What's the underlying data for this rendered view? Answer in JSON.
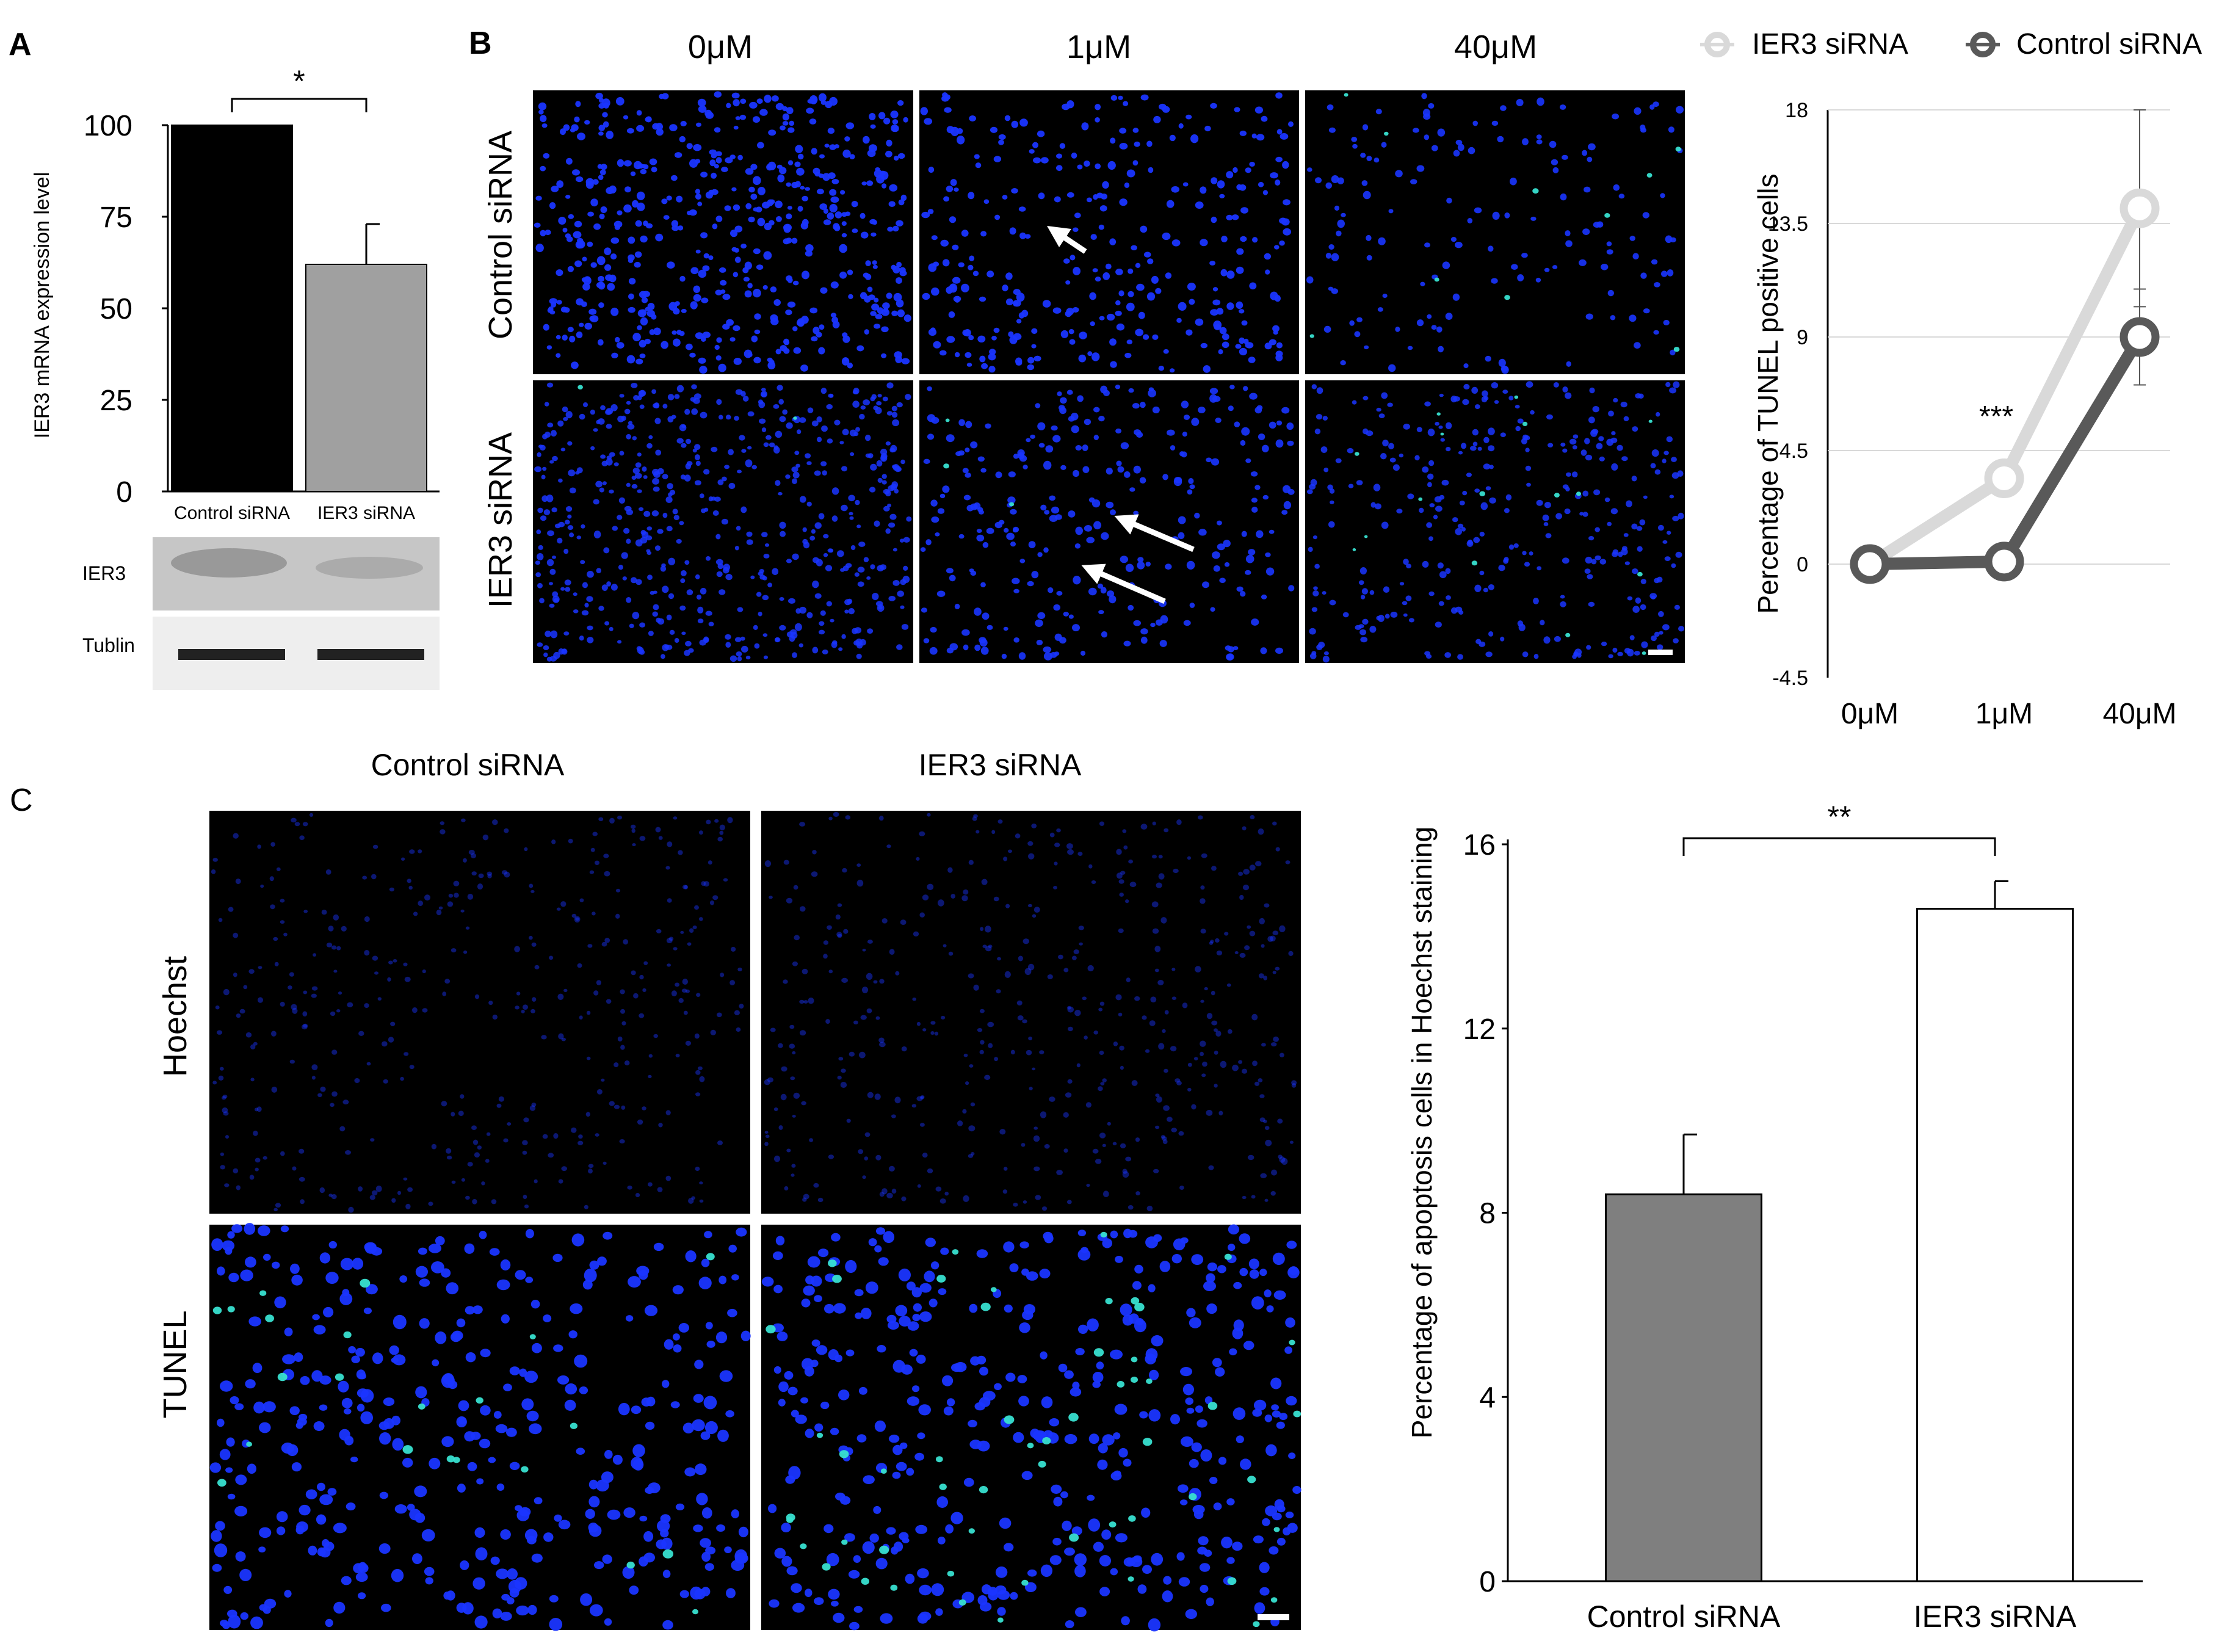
{
  "panels": {
    "a": {
      "letter": "A"
    },
    "b": {
      "letter": "B"
    },
    "c": {
      "letter": "C"
    }
  },
  "chart_data": [
    {
      "id": "panel-a-bar",
      "type": "bar",
      "categories": [
        "Control siRNA",
        "IER3 siRNA"
      ],
      "values": [
        100,
        62
      ],
      "errors": [
        0,
        11
      ],
      "bar_colors": [
        "#000000",
        "#a0a0a0"
      ],
      "ylabel": "IER3 mRNA expression level",
      "ylim": [
        0,
        100
      ],
      "yticks": [
        "100",
        "75",
        "50",
        "25",
        "0"
      ],
      "significance": "*",
      "grid": false
    },
    {
      "id": "panel-b-line",
      "type": "line",
      "x": [
        "0μM",
        "1μM",
        "40μM"
      ],
      "ylabel": "Percentage of TUNEL positive cells",
      "ylim": [
        -4.5,
        18
      ],
      "yticks": [
        "18",
        "13.5",
        "9",
        "4.5",
        "0",
        "-4.5"
      ],
      "series": [
        {
          "name": "IER3 siRNA",
          "color": "#d9d9d9",
          "values": [
            0,
            3.4,
            14.1
          ],
          "errors": [
            0.2,
            0.5,
            3.9
          ]
        },
        {
          "name": "Control siRNA",
          "color": "#595959",
          "values": [
            0,
            0.1,
            9.0
          ],
          "errors": [
            0,
            0,
            1.9
          ]
        }
      ],
      "annotations": [
        "***"
      ],
      "legend": "top",
      "grid": true
    },
    {
      "id": "panel-c-bar",
      "type": "bar",
      "categories": [
        "Control siRNA",
        "IER3 siRNA"
      ],
      "values": [
        8.4,
        14.6
      ],
      "errors": [
        1.3,
        0.6
      ],
      "bar_colors": [
        "#7f7f7f",
        "#ffffff"
      ],
      "ylabel": "Percentage of apoptosis cells in Hoechst staining",
      "ylim": [
        0,
        16
      ],
      "yticks": [
        "16",
        "12",
        "8",
        "4",
        "0"
      ],
      "significance": "**",
      "grid": false
    }
  ],
  "western_blot": {
    "rows": [
      "IER3",
      "Tublin"
    ]
  },
  "micrographs_b": {
    "columns": [
      "0μM",
      "1μM",
      "40μM"
    ],
    "rows": [
      "Control siRNA",
      "IER3 siRNA"
    ]
  },
  "micrographs_c": {
    "columns": [
      "Control siRNA",
      "IER3 siRNA"
    ],
    "rows": [
      "Hoechst",
      "TUNEL"
    ]
  },
  "colors": {
    "nuclei": "#1a35ff",
    "tunel": "#38e0d0",
    "background": "#000000"
  }
}
